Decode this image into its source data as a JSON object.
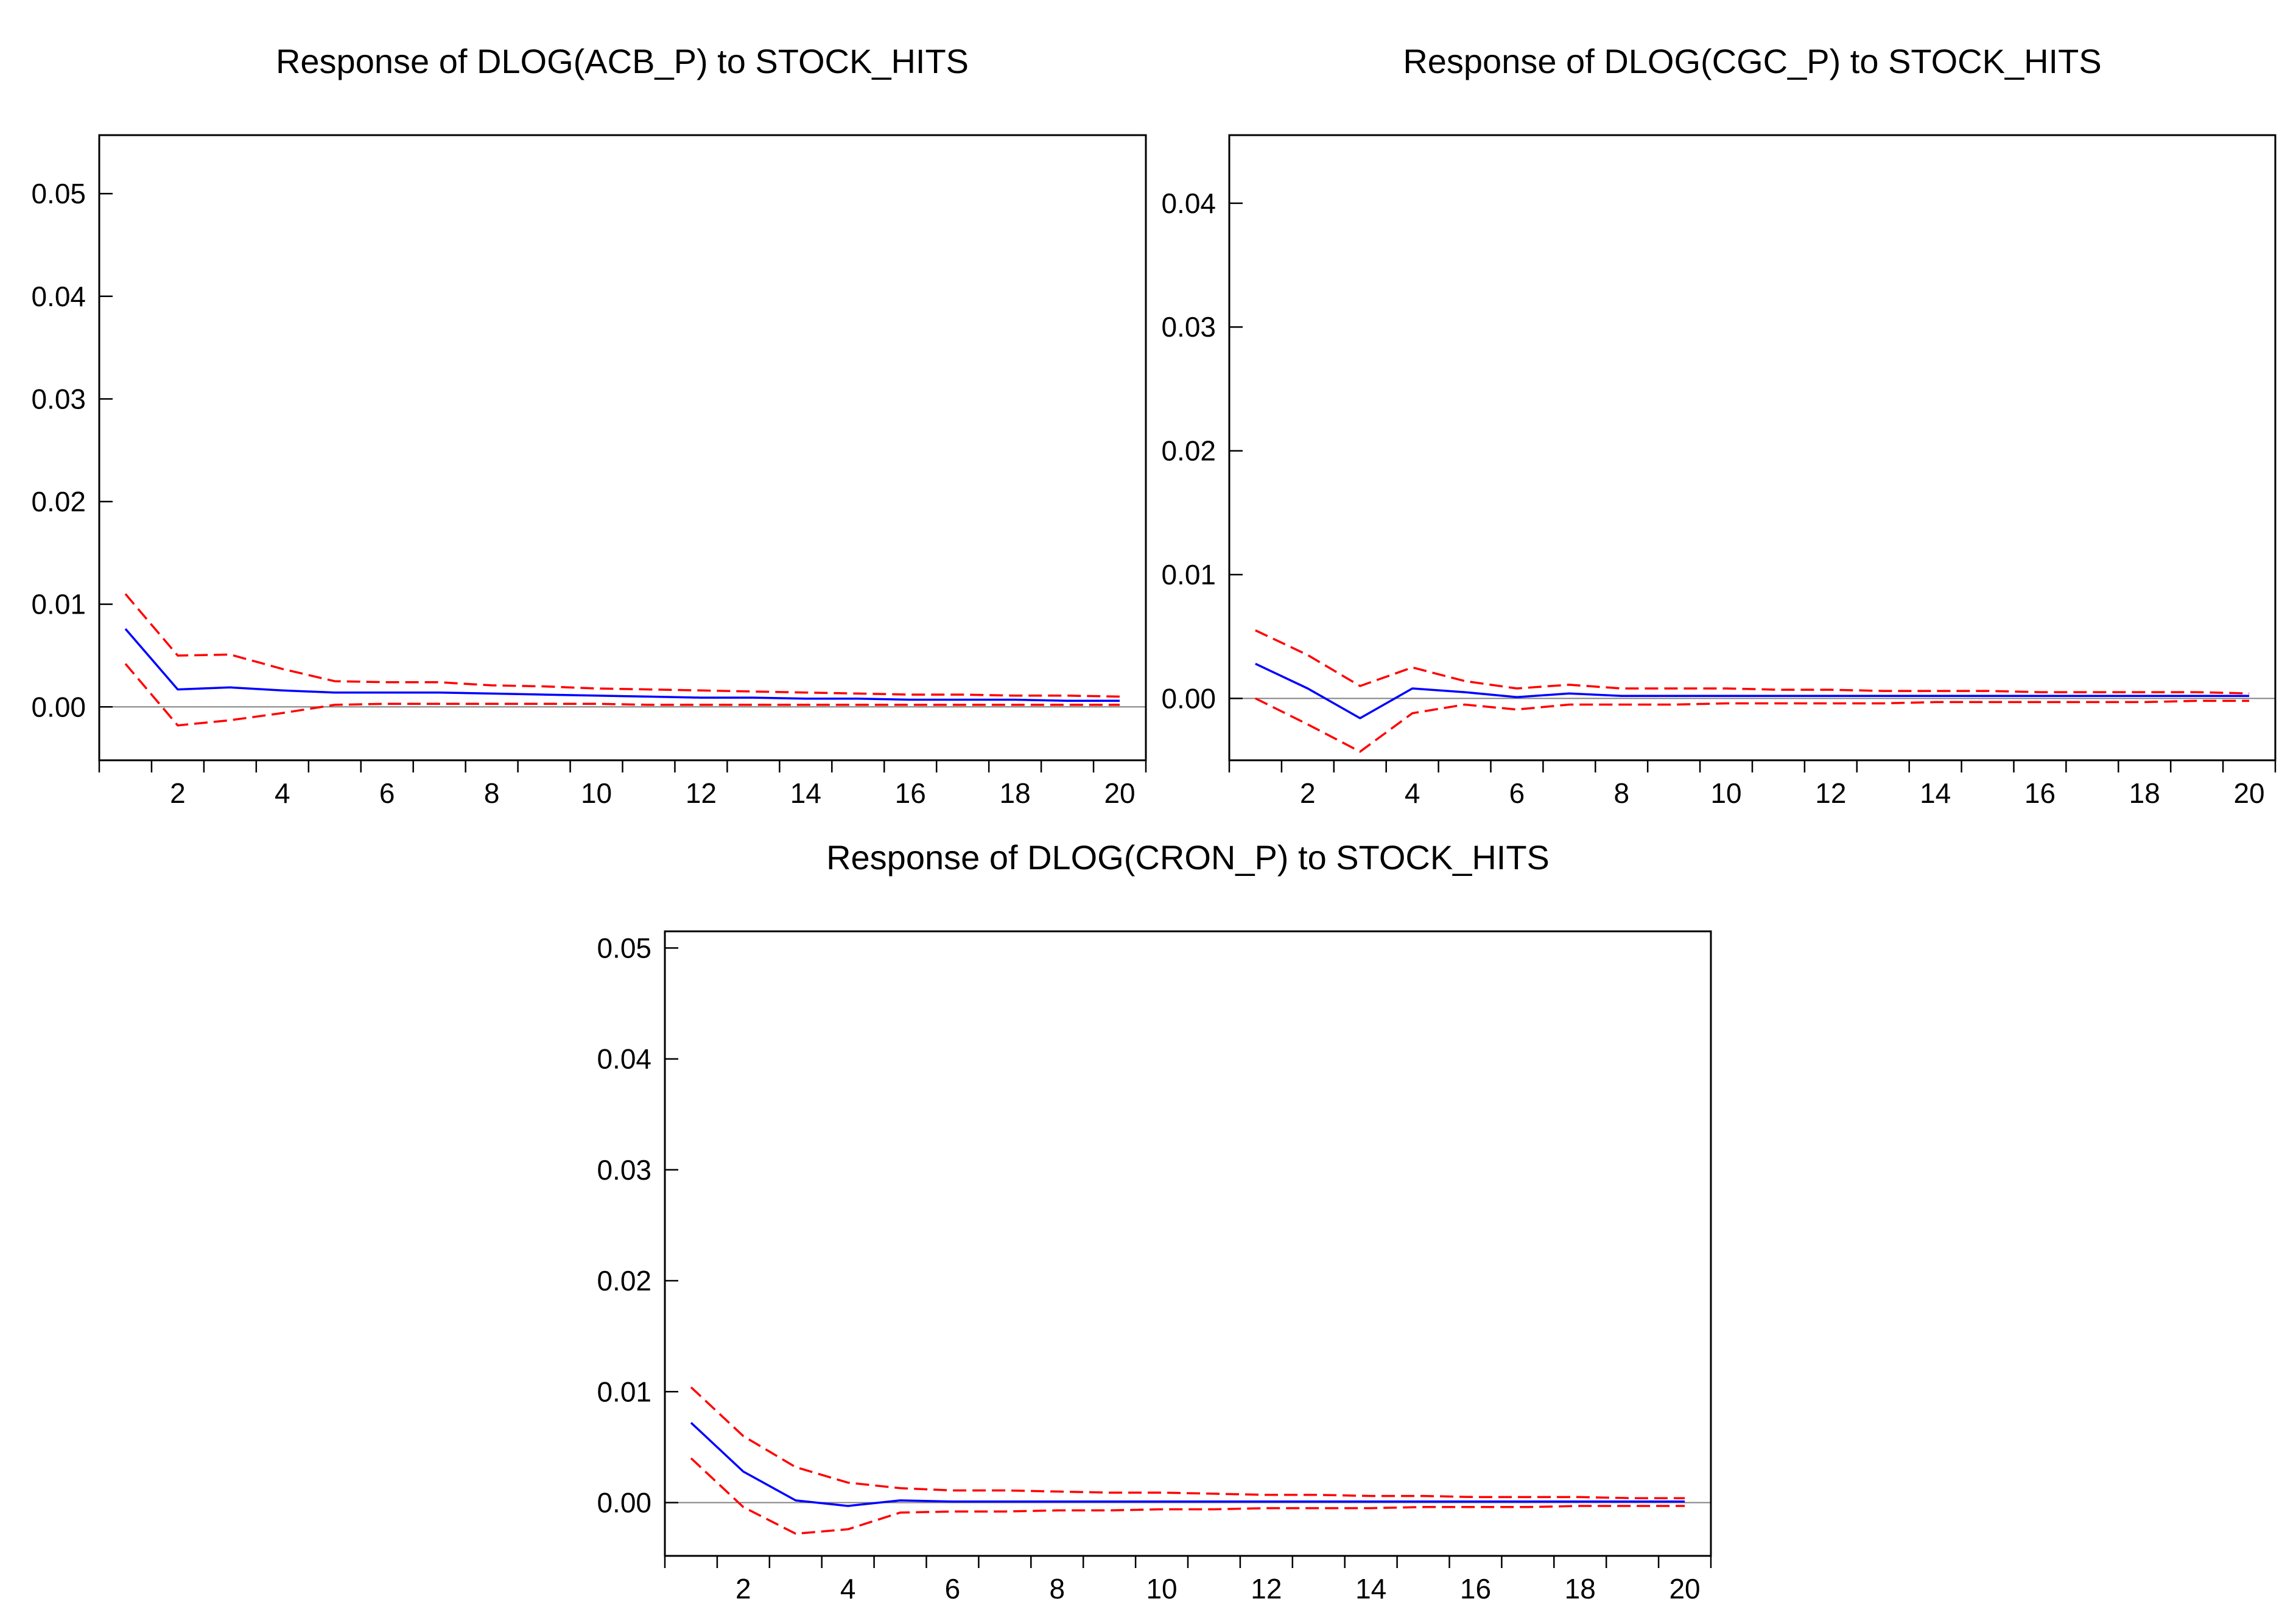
{
  "chart_data": [
    {
      "type": "line",
      "title": "Response of DLOG(ACB_P) to STOCK_HITS",
      "xlabel": "",
      "ylabel": "",
      "x": [
        1,
        2,
        3,
        4,
        5,
        6,
        7,
        8,
        9,
        10,
        11,
        12,
        13,
        14,
        15,
        16,
        17,
        18,
        19,
        20
      ],
      "x_ticks": [
        2,
        4,
        6,
        8,
        10,
        12,
        14,
        16,
        18,
        20
      ],
      "xlim": [
        0.5,
        20.5
      ],
      "ylim": [
        -0.0052,
        0.0557
      ],
      "y_ticks": [
        0.0,
        0.01,
        0.02,
        0.03,
        0.04,
        0.05
      ],
      "y_tick_labels": [
        "0.00",
        "0.01",
        "0.02",
        "0.03",
        "0.04",
        "0.05"
      ],
      "zero_line": true,
      "colors": {
        "response": "#0000ff",
        "band": "#ff0000",
        "zero": "#808080",
        "frame": "#000000"
      },
      "series": [
        {
          "name": "response",
          "values": [
            0.0076,
            0.0017,
            0.0019,
            0.0016,
            0.0014,
            0.0014,
            0.0014,
            0.0013,
            0.0012,
            0.0011,
            0.001,
            0.0009,
            0.0009,
            0.0008,
            0.0008,
            0.0007,
            0.0007,
            0.0007,
            0.0006,
            0.0006
          ]
        },
        {
          "name": "upper band",
          "values": [
            0.011,
            0.005,
            0.0051,
            0.0037,
            0.0025,
            0.0024,
            0.0024,
            0.0021,
            0.002,
            0.0018,
            0.0017,
            0.0016,
            0.0015,
            0.0014,
            0.0013,
            0.0012,
            0.0012,
            0.0011,
            0.0011,
            0.001
          ]
        },
        {
          "name": "lower band",
          "values": [
            0.0042,
            -0.0018,
            -0.0013,
            -0.0006,
            0.0002,
            0.0003,
            0.0003,
            0.0003,
            0.0003,
            0.0003,
            0.0002,
            0.0002,
            0.0002,
            0.0002,
            0.0002,
            0.0002,
            0.0002,
            0.0002,
            0.0002,
            0.0002
          ]
        }
      ]
    },
    {
      "type": "line",
      "title": "Response of DLOG(CGC_P) to STOCK_HITS",
      "xlabel": "",
      "ylabel": "",
      "x": [
        1,
        2,
        3,
        4,
        5,
        6,
        7,
        8,
        9,
        10,
        11,
        12,
        13,
        14,
        15,
        16,
        17,
        18,
        19,
        20
      ],
      "x_ticks": [
        2,
        4,
        6,
        8,
        10,
        12,
        14,
        16,
        18,
        20
      ],
      "xlim": [
        0.5,
        20.5
      ],
      "ylim": [
        -0.005,
        0.0455
      ],
      "y_ticks": [
        0.0,
        0.01,
        0.02,
        0.03,
        0.04
      ],
      "y_tick_labels": [
        "0.00",
        "0.01",
        "0.02",
        "0.03",
        "0.04"
      ],
      "zero_line": true,
      "colors": {
        "response": "#0000ff",
        "band": "#ff0000",
        "zero": "#808080",
        "frame": "#000000"
      },
      "series": [
        {
          "name": "response",
          "values": [
            0.0028,
            0.0008,
            -0.0016,
            0.0008,
            0.0005,
            0.0001,
            0.0004,
            0.0002,
            0.0002,
            0.0002,
            0.0002,
            0.0002,
            0.0002,
            0.0002,
            0.0002,
            0.0002,
            0.0002,
            0.0002,
            0.0002,
            0.0002
          ]
        },
        {
          "name": "upper band",
          "values": [
            0.0055,
            0.0035,
            0.001,
            0.0025,
            0.0014,
            0.0008,
            0.0011,
            0.0008,
            0.0008,
            0.0008,
            0.0007,
            0.0007,
            0.0006,
            0.0006,
            0.0006,
            0.0005,
            0.0005,
            0.0005,
            0.0005,
            0.0004
          ]
        },
        {
          "name": "lower band",
          "values": [
            0.0,
            -0.0021,
            -0.0043,
            -0.0012,
            -0.0005,
            -0.0009,
            -0.0005,
            -0.0005,
            -0.0005,
            -0.0004,
            -0.0004,
            -0.0004,
            -0.0004,
            -0.0003,
            -0.0003,
            -0.0003,
            -0.0003,
            -0.0003,
            -0.0002,
            -0.0002
          ]
        }
      ]
    },
    {
      "type": "line",
      "title": "Response of DLOG(CRON_P) to STOCK_HITS",
      "xlabel": "",
      "ylabel": "",
      "x": [
        1,
        2,
        3,
        4,
        5,
        6,
        7,
        8,
        9,
        10,
        11,
        12,
        13,
        14,
        15,
        16,
        17,
        18,
        19,
        20
      ],
      "x_ticks": [
        2,
        4,
        6,
        8,
        10,
        12,
        14,
        16,
        18,
        20
      ],
      "xlim": [
        0.5,
        20.5
      ],
      "ylim": [
        -0.0048,
        0.0515
      ],
      "y_ticks": [
        0.0,
        0.01,
        0.02,
        0.03,
        0.04,
        0.05
      ],
      "y_tick_labels": [
        "0.00",
        "0.01",
        "0.02",
        "0.03",
        "0.04",
        "0.05"
      ],
      "zero_line": true,
      "colors": {
        "response": "#0000ff",
        "band": "#ff0000",
        "zero": "#808080",
        "frame": "#000000"
      },
      "series": [
        {
          "name": "response",
          "values": [
            0.0072,
            0.0028,
            0.0002,
            -0.0003,
            0.0002,
            0.0001,
            0.0001,
            0.0001,
            0.0001,
            0.0001,
            0.0001,
            0.0001,
            0.0001,
            0.0001,
            0.0001,
            0.0001,
            0.0001,
            0.0001,
            0.0001,
            0.0001
          ]
        },
        {
          "name": "upper band",
          "values": [
            0.0104,
            0.006,
            0.0032,
            0.0018,
            0.0013,
            0.0011,
            0.0011,
            0.001,
            0.0009,
            0.0009,
            0.0008,
            0.0007,
            0.0007,
            0.0006,
            0.0006,
            0.0005,
            0.0005,
            0.0005,
            0.0004,
            0.0004
          ]
        },
        {
          "name": "lower band",
          "values": [
            0.004,
            -0.0004,
            -0.0028,
            -0.0024,
            -0.0009,
            -0.0008,
            -0.0008,
            -0.0007,
            -0.0007,
            -0.0006,
            -0.0006,
            -0.0005,
            -0.0005,
            -0.0005,
            -0.0004,
            -0.0004,
            -0.0004,
            -0.0003,
            -0.0003,
            -0.0003
          ]
        }
      ]
    }
  ]
}
